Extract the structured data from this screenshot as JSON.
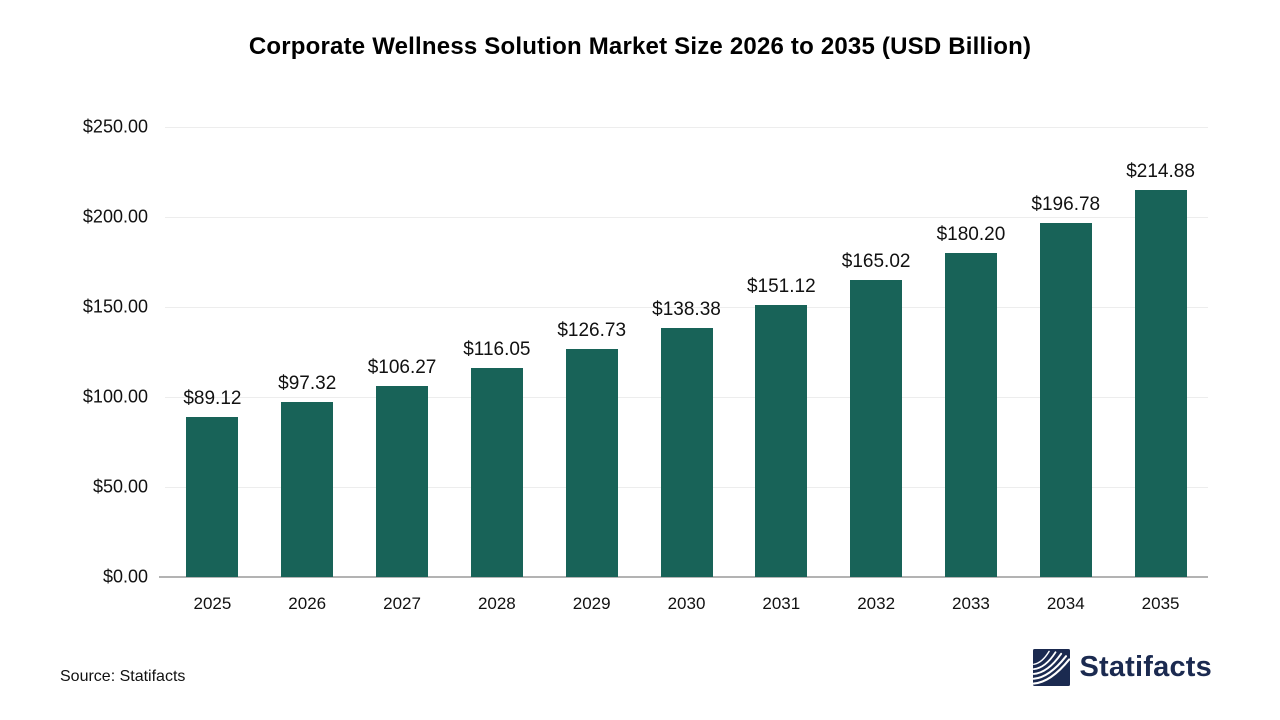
{
  "title": "Corporate Wellness Solution Market Size 2026 to 2035 (USD Billion)",
  "source_note": "Source: Statifacts",
  "brand": {
    "name": "Statifacts",
    "color": "#1b2a50"
  },
  "colors": {
    "bar": "#186358",
    "gridline": "#ededed",
    "zero_axis": "#b3b3b3",
    "text": "#111111",
    "background": "#ffffff"
  },
  "chart_data": {
    "type": "bar",
    "title": "Corporate Wellness Solution Market Size 2026 to 2035 (USD Billion)",
    "categories": [
      "2025",
      "2026",
      "2027",
      "2028",
      "2029",
      "2030",
      "2031",
      "2032",
      "2033",
      "2034",
      "2035"
    ],
    "values": [
      89.12,
      97.32,
      106.27,
      116.05,
      126.73,
      138.38,
      151.12,
      165.02,
      180.2,
      196.78,
      214.88
    ],
    "value_labels": [
      "$89.12",
      "$97.32",
      "$106.27",
      "$116.05",
      "$126.73",
      "$138.38",
      "$151.12",
      "$165.02",
      "$180.20",
      "$196.78",
      "$214.88"
    ],
    "xlabel": "",
    "ylabel": "",
    "ylim": [
      0,
      250
    ],
    "yticks": [
      0,
      50,
      100,
      150,
      200,
      250
    ],
    "ytick_labels": [
      "$0.00",
      "$50.00",
      "$100.00",
      "$150.00",
      "$200.00",
      "$250.00"
    ],
    "grid": true,
    "legend": false,
    "bar_color": "#186358"
  }
}
